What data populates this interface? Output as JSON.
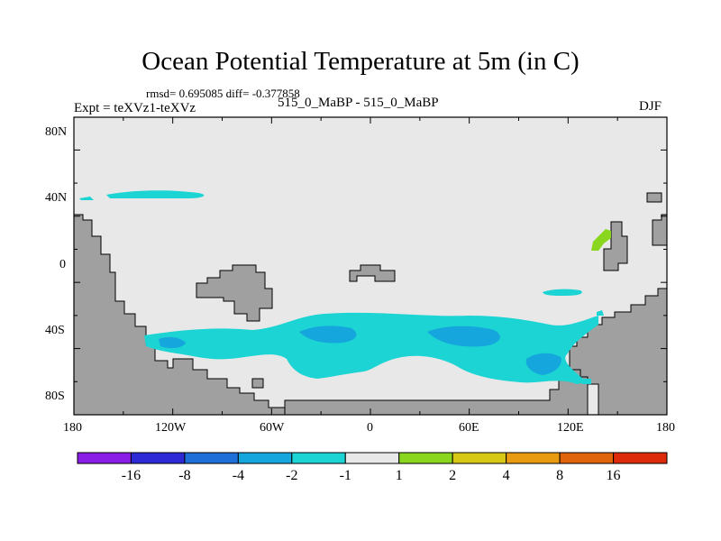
{
  "title": "Ocean Potential Temperature at 5m (in C)",
  "stats": "rmsd= 0.695085 diff= -0.377858",
  "experiment": "Expt = teXVz1-teXVz",
  "center_label": "515_0_MaBP - 515_0_MaBP",
  "season": "DJF",
  "lat_labels": [
    "80N",
    "40N",
    "0",
    "40S",
    "80S"
  ],
  "lon_labels": [
    "180",
    "120W",
    "60W",
    "0",
    "60E",
    "120E",
    "180"
  ],
  "colorbar": {
    "colors": [
      "#8a1ee6",
      "#2e2ad6",
      "#1f6fd8",
      "#14a6dc",
      "#1dd4d4",
      "#e8e8e8",
      "#8ad61e",
      "#d6c814",
      "#e89a10",
      "#e0640c",
      "#dc2a0a"
    ],
    "tick_labels": [
      "-16",
      "-8",
      "-4",
      "-2",
      "-1",
      "1",
      "2",
      "4",
      "8",
      "16"
    ]
  },
  "map_colors": {
    "ocean": "#e8e8e8",
    "land": "#a0a0a0",
    "cool_band": "#1dd4d4",
    "cooler_patch": "#14a6dc",
    "warm_patch": "#8ad61e"
  }
}
